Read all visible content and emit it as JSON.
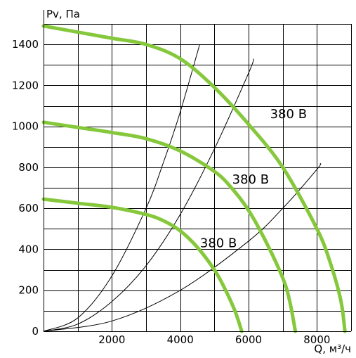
{
  "chart_data": {
    "type": "line",
    "ylabel": "Pv, Па",
    "xlabel": "Q, м³/ч",
    "xlim": [
      0,
      9000
    ],
    "ylim": [
      0,
      1500
    ],
    "x_ticks": [
      2000,
      4000,
      6000,
      8000
    ],
    "y_ticks": [
      0,
      200,
      400,
      600,
      800,
      1000,
      1200,
      1400
    ],
    "x_grid_step": 1000,
    "y_grid_step": 100,
    "grid": true,
    "curve_color": "#86c83c",
    "series": [
      {
        "name": "380 В",
        "x": [
          0,
          1000,
          2000,
          3000,
          4000,
          5000,
          6000,
          7000,
          8000,
          8400,
          8700,
          8820
        ],
        "y": [
          1490,
          1460,
          1430,
          1400,
          1330,
          1190,
          1010,
          800,
          500,
          330,
          150,
          0
        ]
      },
      {
        "name": "380 В",
        "x": [
          0,
          1000,
          2000,
          3000,
          4000,
          5000,
          5500,
          6000,
          6500,
          7000,
          7200,
          7370
        ],
        "y": [
          1020,
          995,
          970,
          940,
          880,
          780,
          700,
          590,
          440,
          260,
          150,
          0
        ]
      },
      {
        "name": "380 В",
        "x": [
          0,
          1000,
          2000,
          3000,
          3500,
          4000,
          4500,
          5000,
          5300,
          5600,
          5800
        ],
        "y": [
          645,
          625,
          605,
          570,
          540,
          490,
          410,
          300,
          210,
          100,
          0
        ]
      }
    ],
    "system_curves": [
      {
        "x": [
          0,
          1000,
          2000,
          3000,
          3500,
          4000,
          4570
        ],
        "y": [
          0,
          65,
          270,
          600,
          820,
          1070,
          1400
        ]
      },
      {
        "x": [
          0,
          1000,
          2000,
          3000,
          4000,
          5000,
          6000,
          6150
        ],
        "y": [
          0,
          35,
          145,
          320,
          570,
          890,
          1260,
          1330
        ]
      },
      {
        "x": [
          0,
          2000,
          4000,
          6000,
          7000,
          8000,
          8100
        ],
        "y": [
          0,
          50,
          200,
          440,
          600,
          790,
          820
        ]
      }
    ],
    "curve_labels": [
      {
        "text": "380 В",
        "x": 6630,
        "y": 1040
      },
      {
        "text": "380 В",
        "x": 5520,
        "y": 720
      },
      {
        "text": "380 В",
        "x": 4580,
        "y": 410
      }
    ]
  }
}
